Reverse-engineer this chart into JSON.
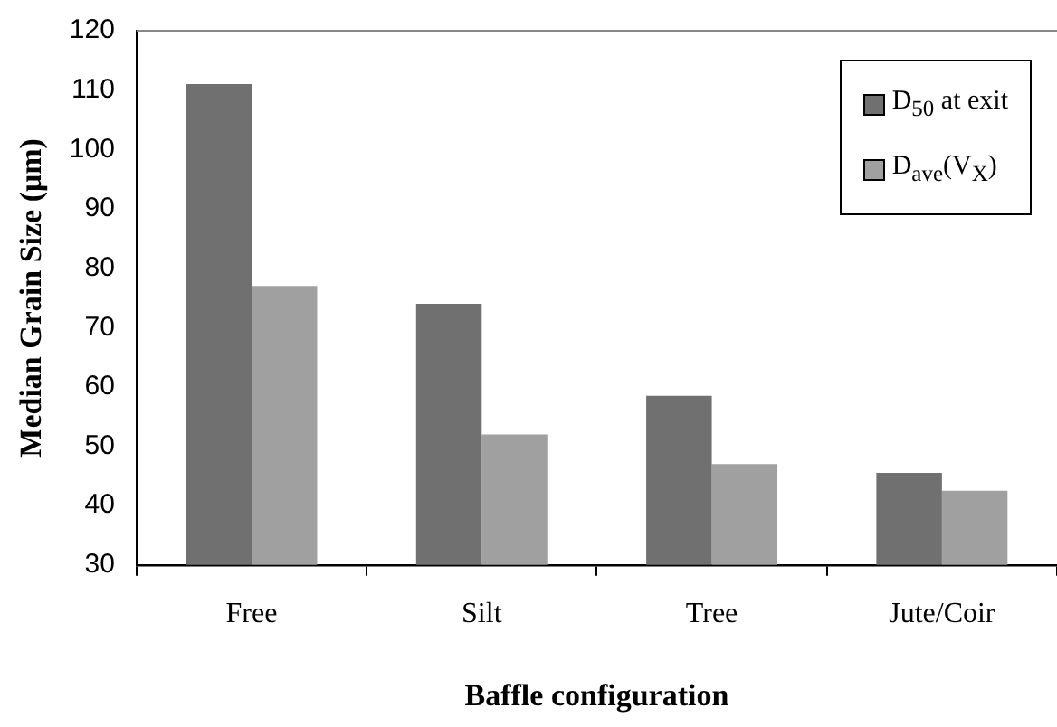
{
  "chart_data": {
    "type": "bar",
    "xlabel": "Baffle configuration",
    "ylabel": "Median Grain Size (μm)",
    "categories": [
      "Free",
      "Silt",
      "Tree",
      "Jute/Coir"
    ],
    "series": [
      {
        "name": "D$_{50}$ at exit",
        "color": "#707070",
        "values": [
          111,
          74,
          58.5,
          45.5
        ]
      },
      {
        "name": "D$_{ave}$(V$_{X}$)",
        "color": "#a0a0a0",
        "values": [
          77,
          52,
          47,
          42.5
        ]
      }
    ],
    "ylim": [
      30,
      120
    ],
    "yticks": [
      30,
      40,
      50,
      60,
      70,
      80,
      90,
      100,
      110,
      120
    ],
    "grid": false,
    "legend": "top right"
  }
}
